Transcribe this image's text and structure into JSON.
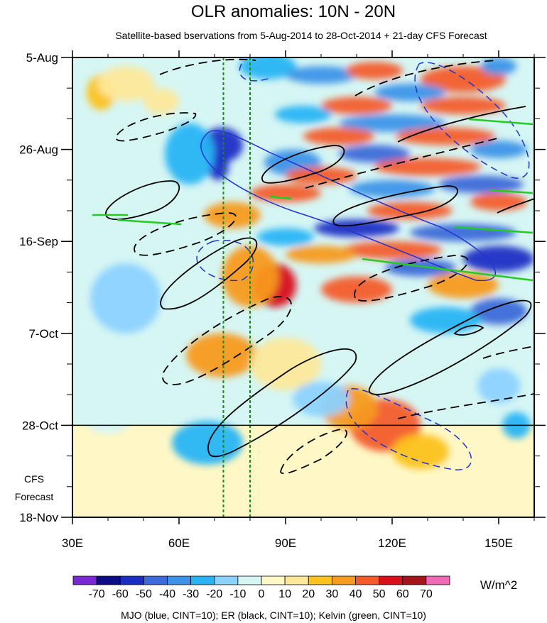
{
  "chart_data": {
    "type": "heatmap",
    "title": "OLR anomalies: 10N - 20N",
    "subtitle": "Satellite-based bservations from 5-Aug-2014 to 28-Oct-2014 + 21-day CFS Forecast",
    "x_axis": {
      "range": [
        30,
        160
      ],
      "ticks": [
        30,
        60,
        90,
        120,
        150
      ],
      "tick_labels": [
        "30E",
        "60E",
        "90E",
        "120E",
        "150E"
      ]
    },
    "y_axis": {
      "range_days": [
        0,
        105
      ],
      "ticks_days": [
        0,
        21,
        42,
        63,
        84,
        105
      ],
      "tick_labels": [
        "5-Aug",
        "26-Aug",
        "16-Sep",
        "7-Oct",
        "28-Oct",
        "18-Nov"
      ],
      "reversed": true
    },
    "forecast_line_day": 84,
    "forecast_label": [
      "CFS",
      "Forecast"
    ],
    "reference_lon_lines": [
      72.5,
      80
    ],
    "colorbar": {
      "levels": [
        -70,
        -60,
        -50,
        -40,
        -30,
        -20,
        -10,
        0,
        10,
        20,
        30,
        40,
        50,
        60,
        70
      ],
      "colors": [
        "#7a28d6",
        "#0c0c86",
        "#1a2ec4",
        "#3c6ad8",
        "#3c93e8",
        "#28b4f4",
        "#8cd2ff",
        "#d6f6f4",
        "#fff8c6",
        "#fde89a",
        "#fcc21e",
        "#f79a20",
        "#f35c2a",
        "#d8101c",
        "#a41418",
        "#f06ab8"
      ],
      "units": "W/m^2"
    },
    "anomaly_blobs": [
      {
        "lon": 38,
        "day": 8,
        "v": 25,
        "rx": 4,
        "ry": 4
      },
      {
        "lon": 55,
        "day": 10,
        "v": 18,
        "rx": 5,
        "ry": 3
      },
      {
        "lon": 72,
        "day": 20,
        "v": -55,
        "rx": 6,
        "ry": 4
      },
      {
        "lon": 71,
        "day": 25,
        "v": -60,
        "rx": 3,
        "ry": 3
      },
      {
        "lon": 63,
        "day": 22,
        "v": -25,
        "rx": 7,
        "ry": 7
      },
      {
        "lon": 45,
        "day": 6,
        "v": 15,
        "rx": 8,
        "ry": 4
      },
      {
        "lon": 85,
        "day": 2,
        "v": -25,
        "rx": 8,
        "ry": 3
      },
      {
        "lon": 100,
        "day": 4,
        "v": -40,
        "rx": 10,
        "ry": 2
      },
      {
        "lon": 115,
        "day": 3,
        "v": 40,
        "rx": 8,
        "ry": 2
      },
      {
        "lon": 140,
        "day": 5,
        "v": 45,
        "rx": 12,
        "ry": 3
      },
      {
        "lon": 150,
        "day": 2,
        "v": -40,
        "rx": 5,
        "ry": 2
      },
      {
        "lon": 125,
        "day": 8,
        "v": -35,
        "rx": 10,
        "ry": 2
      },
      {
        "lon": 140,
        "day": 11,
        "v": 40,
        "rx": 12,
        "ry": 2
      },
      {
        "lon": 110,
        "day": 11,
        "v": 45,
        "rx": 10,
        "ry": 2
      },
      {
        "lon": 95,
        "day": 13,
        "v": -30,
        "rx": 8,
        "ry": 2
      },
      {
        "lon": 120,
        "day": 15,
        "v": -40,
        "rx": 15,
        "ry": 2
      },
      {
        "lon": 135,
        "day": 18,
        "v": 45,
        "rx": 14,
        "ry": 2
      },
      {
        "lon": 105,
        "day": 18,
        "v": 40,
        "rx": 10,
        "ry": 2
      },
      {
        "lon": 150,
        "day": 21,
        "v": -40,
        "rx": 8,
        "ry": 2
      },
      {
        "lon": 115,
        "day": 22,
        "v": -45,
        "rx": 10,
        "ry": 2
      },
      {
        "lon": 92,
        "day": 24,
        "v": -35,
        "rx": 8,
        "ry": 3
      },
      {
        "lon": 130,
        "day": 25,
        "v": 40,
        "rx": 15,
        "ry": 2
      },
      {
        "lon": 100,
        "day": 27,
        "v": 45,
        "rx": 10,
        "ry": 2
      },
      {
        "lon": 145,
        "day": 29,
        "v": -45,
        "rx": 12,
        "ry": 2
      },
      {
        "lon": 120,
        "day": 30,
        "v": -40,
        "rx": 12,
        "ry": 2
      },
      {
        "lon": 90,
        "day": 31,
        "v": 40,
        "rx": 10,
        "ry": 2
      },
      {
        "lon": 150,
        "day": 33,
        "v": 45,
        "rx": 8,
        "ry": 2
      },
      {
        "lon": 125,
        "day": 35,
        "v": 45,
        "rx": 12,
        "ry": 2
      },
      {
        "lon": 75,
        "day": 36,
        "v": 35,
        "rx": 8,
        "ry": 3
      },
      {
        "lon": 110,
        "day": 39,
        "v": -55,
        "rx": 12,
        "ry": 2
      },
      {
        "lon": 140,
        "day": 40,
        "v": -45,
        "rx": 15,
        "ry": 2
      },
      {
        "lon": 90,
        "day": 41,
        "v": -30,
        "rx": 8,
        "ry": 2
      },
      {
        "lon": 120,
        "day": 44,
        "v": 45,
        "rx": 14,
        "ry": 2
      },
      {
        "lon": 100,
        "day": 45,
        "v": 35,
        "rx": 10,
        "ry": 2
      },
      {
        "lon": 150,
        "day": 46,
        "v": -55,
        "rx": 10,
        "ry": 3
      },
      {
        "lon": 128,
        "day": 48,
        "v": -45,
        "rx": 10,
        "ry": 2
      },
      {
        "lon": 87,
        "day": 52,
        "v": 55,
        "rx": 6,
        "ry": 5
      },
      {
        "lon": 80,
        "day": 50,
        "v": 35,
        "rx": 8,
        "ry": 7
      },
      {
        "lon": 110,
        "day": 53,
        "v": 40,
        "rx": 10,
        "ry": 3
      },
      {
        "lon": 140,
        "day": 52,
        "v": 30,
        "rx": 10,
        "ry": 3
      },
      {
        "lon": 150,
        "day": 58,
        "v": -50,
        "rx": 8,
        "ry": 3
      },
      {
        "lon": 135,
        "day": 60,
        "v": -30,
        "rx": 10,
        "ry": 3
      },
      {
        "lon": 72,
        "day": 68,
        "v": 35,
        "rx": 10,
        "ry": 5
      },
      {
        "lon": 90,
        "day": 70,
        "v": 15,
        "rx": 10,
        "ry": 6
      },
      {
        "lon": 118,
        "day": 84,
        "v": 40,
        "rx": 10,
        "ry": 6
      },
      {
        "lon": 108,
        "day": 80,
        "v": 30,
        "rx": 8,
        "ry": 5
      },
      {
        "lon": 128,
        "day": 90,
        "v": 25,
        "rx": 8,
        "ry": 4
      },
      {
        "lon": 68,
        "day": 88,
        "v": -30,
        "rx": 10,
        "ry": 5
      },
      {
        "lon": 100,
        "day": 78,
        "v": -15,
        "rx": 8,
        "ry": 4
      },
      {
        "lon": 45,
        "day": 55,
        "v": -12,
        "rx": 10,
        "ry": 8
      },
      {
        "lon": 40,
        "day": 80,
        "v": -10,
        "rx": 8,
        "ry": 6
      },
      {
        "lon": 155,
        "day": 84,
        "v": -25,
        "rx": 4,
        "ry": 3
      },
      {
        "lon": 150,
        "day": 75,
        "v": -20,
        "rx": 6,
        "ry": 4
      }
    ],
    "legend_caption": "MJO (blue, CINT=10); ER (black, CINT=10); Kelvin (green, CINT=10)"
  }
}
